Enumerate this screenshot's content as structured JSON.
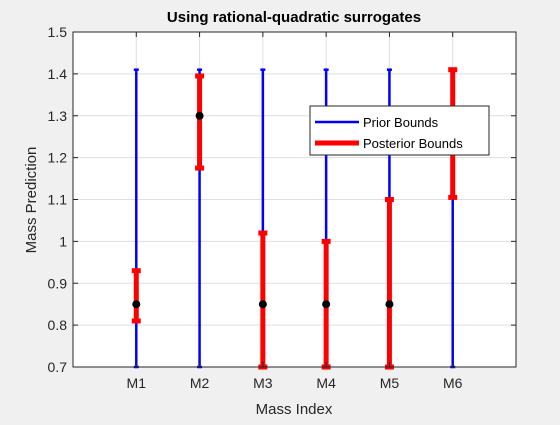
{
  "chart_data": {
    "type": "errorbar",
    "title": "Using rational-quadratic surrogates",
    "xlabel": "Mass Index",
    "ylabel": "Mass Prediction",
    "categories": [
      "M1",
      "M2",
      "M3",
      "M4",
      "M5",
      "M6"
    ],
    "ylim": [
      0.7,
      1.5
    ],
    "yticks": [
      "0.7",
      "0.8",
      "0.9",
      "1",
      "1.1",
      "1.2",
      "1.3",
      "1.4",
      "1.5"
    ],
    "grid": true,
    "legend_position": "upper-right",
    "series": [
      {
        "name": "Prior Bounds",
        "color": "#0000ff",
        "lower": [
          0.7,
          0.7,
          0.7,
          0.7,
          0.7,
          0.7
        ],
        "upper": [
          1.41,
          1.41,
          1.41,
          1.41,
          1.41,
          1.41
        ]
      },
      {
        "name": "Posterior Bounds",
        "color": "#ff0000",
        "lower": [
          0.81,
          1.175,
          0.7,
          0.7,
          0.7,
          1.105
        ],
        "upper": [
          0.93,
          1.395,
          1.02,
          1.0,
          1.1,
          1.41
        ]
      }
    ],
    "point_estimates": {
      "color": "#000000",
      "values": [
        0.85,
        1.3,
        0.85,
        0.85,
        0.85,
        null
      ]
    }
  }
}
